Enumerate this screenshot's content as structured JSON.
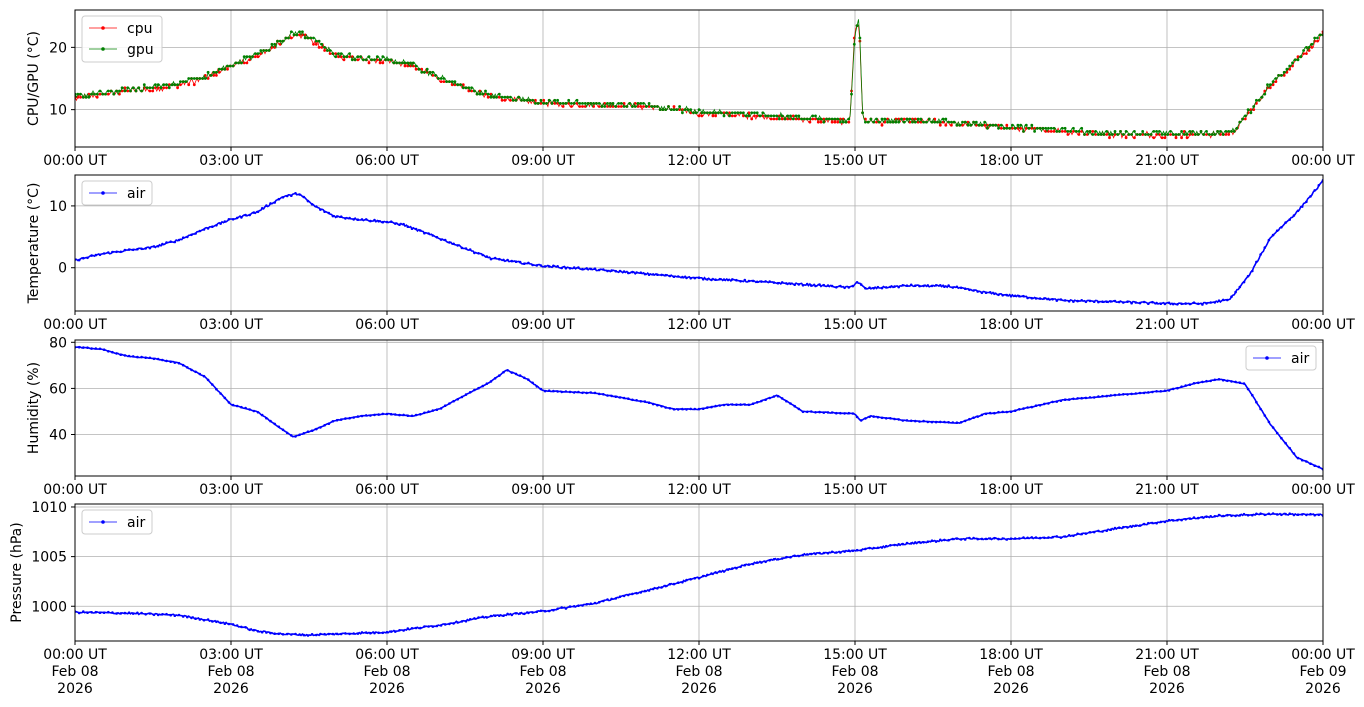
{
  "colors": {
    "cpu": "#ff0000",
    "gpu": "#008000",
    "air": "#0000ff",
    "grid": "#b0b0b0",
    "axis": "#000000"
  },
  "chart_data": [
    {
      "type": "line",
      "title": "",
      "xlabel": "",
      "ylabel": "CPU/GPU (°C)",
      "xlim_hours": [
        0,
        24
      ],
      "ylim": [
        4,
        26
      ],
      "yticks": [
        10,
        20
      ],
      "grid": true,
      "legend_position": "upper-left",
      "x_tick_labels": [
        [
          "00:00 UT"
        ],
        [
          "03:00 UT"
        ],
        [
          "06:00 UT"
        ],
        [
          "09:00 UT"
        ],
        [
          "12:00 UT"
        ],
        [
          "15:00 UT"
        ],
        [
          "18:00 UT"
        ],
        [
          "21:00 UT"
        ],
        [
          "00:00 UT"
        ]
      ],
      "series": [
        {
          "name": "cpu",
          "color": "#ff0000",
          "marker": "dot",
          "x_hours": [
            0,
            0.5,
            1,
            1.5,
            2,
            2.5,
            3,
            3.5,
            4,
            4.25,
            4.5,
            5,
            5.5,
            6,
            6.5,
            7,
            7.5,
            8,
            9,
            10,
            11,
            12,
            13,
            14,
            14.9,
            15.0,
            15.08,
            15.15,
            15.3,
            16,
            17,
            18,
            19,
            20,
            21,
            22,
            22.3,
            23,
            23.5,
            24
          ],
          "values": [
            11.8,
            12.5,
            13,
            13.3,
            14,
            15,
            17,
            18.5,
            21,
            22.3,
            21.5,
            18.7,
            18,
            17.8,
            17,
            15,
            13.5,
            12,
            11,
            10.8,
            10.5,
            9.5,
            9,
            8.5,
            8,
            23,
            24,
            8.5,
            8,
            8.2,
            7.8,
            7,
            6.5,
            6,
            6,
            6,
            6.5,
            14,
            18,
            22
          ]
        },
        {
          "name": "gpu",
          "color": "#008000",
          "marker": "dot",
          "x_hours": [
            0,
            0.5,
            1,
            1.5,
            2,
            2.5,
            3,
            3.5,
            4,
            4.25,
            4.5,
            5,
            5.5,
            6,
            6.5,
            7,
            7.5,
            8,
            9,
            10,
            11,
            12,
            13,
            14,
            14.9,
            15.0,
            15.08,
            15.15,
            15.3,
            16,
            17,
            18,
            19,
            20,
            21,
            22,
            22.3,
            23,
            23.5,
            24
          ],
          "values": [
            12,
            12.7,
            13.2,
            13.6,
            14.2,
            15.3,
            17.2,
            18.8,
            21.2,
            22.5,
            21.7,
            18.9,
            18.2,
            18,
            17.2,
            15.2,
            13.7,
            12.2,
            11.2,
            11,
            10.6,
            9.7,
            9.2,
            8.7,
            8.2,
            22,
            24.5,
            8.7,
            8.2,
            8.4,
            8,
            7.2,
            6.7,
            6.2,
            6.2,
            6.2,
            6.7,
            14.2,
            18.2,
            22.3
          ]
        }
      ]
    },
    {
      "type": "line",
      "title": "",
      "xlabel": "",
      "ylabel": "Temperature (°C)",
      "xlim_hours": [
        0,
        24
      ],
      "ylim": [
        -7,
        15
      ],
      "yticks": [
        0,
        10
      ],
      "grid": true,
      "legend_position": "upper-left",
      "x_tick_labels": [
        [
          "00:00 UT"
        ],
        [
          "03:00 UT"
        ],
        [
          "06:00 UT"
        ],
        [
          "09:00 UT"
        ],
        [
          "12:00 UT"
        ],
        [
          "15:00 UT"
        ],
        [
          "18:00 UT"
        ],
        [
          "21:00 UT"
        ],
        [
          "00:00 UT"
        ]
      ],
      "series": [
        {
          "name": "air",
          "color": "#0000ff",
          "marker": "dot",
          "x_hours": [
            0,
            0.5,
            1,
            1.5,
            2,
            2.5,
            3,
            3.5,
            4,
            4.3,
            4.6,
            5,
            5.5,
            6,
            6.3,
            7,
            8,
            9,
            10,
            11,
            12,
            13,
            14,
            14.9,
            15.05,
            15.2,
            16,
            16.8,
            17.5,
            18,
            19,
            20,
            21,
            21.7,
            22.2,
            22.6,
            23,
            23.5,
            24
          ],
          "values": [
            1.2,
            2.2,
            2.8,
            3.3,
            4.5,
            6.3,
            7.8,
            9,
            11.5,
            12,
            10,
            8.3,
            7.8,
            7.4,
            7,
            4.8,
            1.5,
            0.3,
            -0.3,
            -1,
            -1.7,
            -2.2,
            -2.7,
            -3.2,
            -2.3,
            -3.4,
            -2.9,
            -3,
            -4,
            -4.5,
            -5.3,
            -5.5,
            -5.8,
            -5.8,
            -5.2,
            -1,
            5,
            9,
            14
          ]
        }
      ]
    },
    {
      "type": "line",
      "title": "",
      "xlabel": "",
      "ylabel": "Humidity (%)",
      "xlim_hours": [
        0,
        24
      ],
      "ylim": [
        22,
        81
      ],
      "yticks": [
        40,
        60,
        80
      ],
      "grid": true,
      "legend_position": "upper-right",
      "x_tick_labels": [
        [
          "00:00 UT"
        ],
        [
          "03:00 UT"
        ],
        [
          "06:00 UT"
        ],
        [
          "09:00 UT"
        ],
        [
          "12:00 UT"
        ],
        [
          "15:00 UT"
        ],
        [
          "18:00 UT"
        ],
        [
          "21:00 UT"
        ],
        [
          "00:00 UT"
        ]
      ],
      "series": [
        {
          "name": "air",
          "color": "#0000ff",
          "marker": "dot",
          "x_hours": [
            0,
            0.5,
            1,
            1.5,
            2,
            2.5,
            3,
            3.5,
            4,
            4.2,
            4.6,
            5,
            5.5,
            6,
            6.5,
            7,
            7.5,
            8,
            8.3,
            8.7,
            9,
            10,
            11,
            11.5,
            12,
            12.5,
            13,
            13.5,
            14,
            15,
            15.1,
            15.3,
            16,
            17,
            17.5,
            18,
            19,
            20,
            21,
            21.5,
            22,
            22.5,
            23,
            23.5,
            24
          ],
          "values": [
            78,
            77,
            74,
            73,
            71,
            65,
            53,
            50,
            42,
            39,
            42,
            46,
            48,
            49,
            48,
            51,
            57,
            63,
            68,
            64,
            59,
            58,
            54,
            51,
            51,
            53,
            53,
            57,
            50,
            49,
            46,
            48,
            46,
            45,
            49,
            50,
            55,
            57,
            59,
            62,
            64,
            62,
            44,
            30,
            25
          ]
        }
      ]
    },
    {
      "type": "line",
      "title": "",
      "xlabel": "",
      "ylabel": "Pressure (hPa)",
      "xlim_hours": [
        0,
        24
      ],
      "ylim": [
        996.5,
        1010.3
      ],
      "yticks": [
        1000,
        1005,
        1010
      ],
      "grid": true,
      "legend_position": "upper-left",
      "x_tick_labels": [
        [
          "00:00 UT",
          "Feb 08",
          "2026"
        ],
        [
          "03:00 UT",
          "Feb 08",
          "2026"
        ],
        [
          "06:00 UT",
          "Feb 08",
          "2026"
        ],
        [
          "09:00 UT",
          "Feb 08",
          "2026"
        ],
        [
          "12:00 UT",
          "Feb 08",
          "2026"
        ],
        [
          "15:00 UT",
          "Feb 08",
          "2026"
        ],
        [
          "18:00 UT",
          "Feb 08",
          "2026"
        ],
        [
          "21:00 UT",
          "Feb 08",
          "2026"
        ],
        [
          "00:00 UT",
          "Feb 09",
          "2026"
        ]
      ],
      "series": [
        {
          "name": "air",
          "color": "#0000ff",
          "marker": "dot",
          "x_hours": [
            0,
            1,
            2,
            3,
            3.5,
            4,
            4.5,
            5,
            6,
            7,
            8,
            9,
            10,
            11,
            12,
            13,
            14,
            15,
            16,
            17,
            18,
            19,
            20,
            21,
            22,
            23,
            24
          ],
          "values": [
            999.4,
            999.3,
            999.1,
            998.2,
            997.5,
            997.2,
            997.1,
            997.2,
            997.4,
            998.1,
            999,
            999.5,
            1000.3,
            1001.6,
            1002.9,
            1004.3,
            1005.2,
            1005.6,
            1006.3,
            1006.8,
            1006.8,
            1007,
            1007.8,
            1008.6,
            1009.1,
            1009.3,
            1009.2
          ]
        }
      ]
    }
  ]
}
